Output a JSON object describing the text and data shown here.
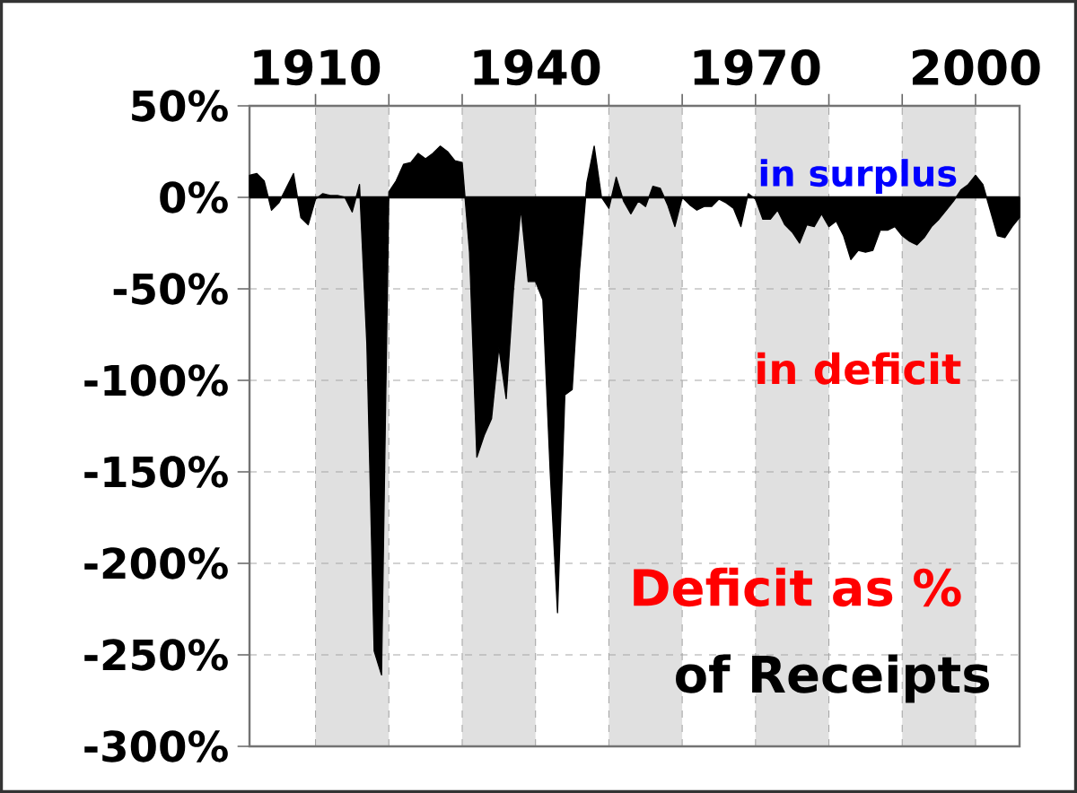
{
  "chart_data": {
    "type": "area",
    "title": "Deficit as %",
    "subtitle": "of Receipts",
    "annotations": [
      "in surplus",
      "in deficit"
    ],
    "x": [
      1901,
      1902,
      1903,
      1904,
      1905,
      1906,
      1907,
      1908,
      1909,
      1910,
      1911,
      1912,
      1913,
      1914,
      1915,
      1916,
      1917,
      1918,
      1919,
      1920,
      1921,
      1922,
      1923,
      1924,
      1925,
      1926,
      1927,
      1928,
      1929,
      1930,
      1931,
      1932,
      1933,
      1934,
      1935,
      1936,
      1937,
      1938,
      1939,
      1940,
      1941,
      1942,
      1943,
      1944,
      1945,
      1946,
      1947,
      1948,
      1949,
      1950,
      1951,
      1952,
      1953,
      1954,
      1955,
      1956,
      1957,
      1958,
      1959,
      1960,
      1961,
      1962,
      1963,
      1964,
      1965,
      1966,
      1967,
      1968,
      1969,
      1970,
      1971,
      1972,
      1973,
      1974,
      1975,
      1976,
      1977,
      1978,
      1979,
      1980,
      1981,
      1982,
      1983,
      1984,
      1985,
      1986,
      1987,
      1988,
      1989,
      1990,
      1991,
      1992,
      1993,
      1994,
      1995,
      1996,
      1997,
      1998,
      1999,
      2000,
      2001,
      2002,
      2003,
      2004,
      2005,
      2006
    ],
    "series": [
      {
        "color": "#000000",
        "values": [
          12,
          13,
          9,
          -7,
          -3,
          5,
          13,
          -11,
          -15,
          -1,
          2,
          1,
          1,
          0,
          -8,
          7,
          -80,
          -248,
          -261,
          3,
          9,
          18,
          19,
          24,
          21,
          24,
          28,
          25,
          20,
          19,
          -30,
          -142,
          -130,
          -121,
          -82,
          -110,
          -50,
          -6,
          -46,
          -46,
          -56,
          -150,
          -227,
          -108,
          -105,
          -40,
          8,
          28,
          0,
          -6,
          11,
          -2,
          -9,
          -2,
          -5,
          6,
          5,
          -4,
          -16,
          0,
          -4,
          -7,
          -5,
          -5,
          -1,
          -3,
          -6,
          -16,
          2,
          -1,
          -12,
          -12,
          -7,
          -15,
          -19,
          -25,
          -15,
          -16,
          -9,
          -16,
          -13,
          -21,
          -34,
          -29,
          -30,
          -29,
          -18,
          -18,
          -16,
          -21,
          -24,
          -26,
          -22,
          -16,
          -12,
          -7,
          -2,
          4,
          7,
          12,
          7,
          -7,
          -21,
          -22,
          -16,
          -11
        ]
      }
    ],
    "xlim": [
      1901,
      2006
    ],
    "ylim": [
      -300,
      50
    ],
    "xticks": [
      1910,
      {
        "value": 1920,
        "label": null
      },
      {
        "value": 1930,
        "label": null
      },
      1940,
      {
        "value": 1950,
        "label": null
      },
      {
        "value": 1960,
        "label": null
      },
      1970,
      {
        "value": 1980,
        "label": null
      },
      {
        "value": 1990,
        "label": null
      },
      2000
    ],
    "yticks": [
      {
        "value": 50,
        "label": "50%"
      },
      {
        "value": 0,
        "label": "0%"
      },
      {
        "value": -50,
        "label": "-50%"
      },
      {
        "value": -100,
        "label": "-100%"
      },
      {
        "value": -150,
        "label": "-150%"
      },
      {
        "value": -200,
        "label": "-200%"
      },
      {
        "value": -250,
        "label": "-250%"
      },
      {
        "value": -300,
        "label": "-300%"
      }
    ],
    "bands": [
      {
        "axis": "x",
        "from": 1910,
        "to": 1920,
        "color": "#e0e0e0"
      },
      {
        "axis": "x",
        "from": 1930,
        "to": 1940,
        "color": "#e0e0e0"
      },
      {
        "axis": "x",
        "from": 1950,
        "to": 1960,
        "color": "#e0e0e0"
      },
      {
        "axis": "x",
        "from": 1970,
        "to": 1980,
        "color": "#e0e0e0"
      },
      {
        "axis": "x",
        "from": 1990,
        "to": 2000,
        "color": "#e0e0e0"
      }
    ],
    "ref_lines": [
      {
        "axis": "y",
        "value": 0,
        "color": "#000000"
      }
    ],
    "grid": true
  }
}
